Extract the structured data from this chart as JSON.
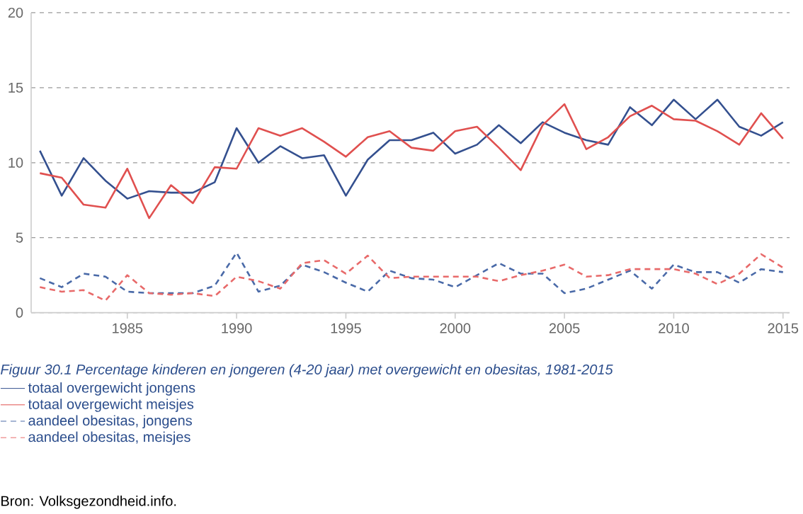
{
  "chart_data": {
    "type": "line",
    "title": "Figuur 30.1 Percentage kinderen en jongeren (4-20 jaar) met overgewicht en obesitas, 1981-2015",
    "annotations": [
      "Bron: Volksgezondheid.info."
    ],
    "x": [
      1981,
      1982,
      1983,
      1984,
      1985,
      1986,
      1987,
      1988,
      1989,
      1990,
      1991,
      1992,
      1993,
      1994,
      1995,
      1996,
      1997,
      1998,
      1999,
      2000,
      2001,
      2002,
      2003,
      2004,
      2005,
      2006,
      2007,
      2008,
      2009,
      2010,
      2011,
      2012,
      2013,
      2014,
      2015
    ],
    "xlim": [
      1980.6,
      2015.3
    ],
    "ylim": [
      0,
      20
    ],
    "xticks": [
      1985,
      1990,
      1995,
      2000,
      2005,
      2010,
      2015
    ],
    "yticks": [
      0,
      5,
      10,
      15,
      20
    ],
    "grid": "y",
    "legend": "bottom",
    "series": [
      {
        "name": "totaal overgewicht jongens",
        "color": "#34508f",
        "line_style": "solid",
        "values": [
          10.8,
          7.8,
          10.3,
          8.8,
          7.6,
          8.1,
          8.0,
          8.0,
          8.7,
          12.3,
          10.0,
          11.1,
          10.3,
          10.5,
          7.8,
          10.2,
          11.5,
          11.5,
          12.0,
          10.6,
          11.2,
          12.5,
          11.3,
          12.7,
          12.0,
          11.5,
          11.2,
          13.7,
          12.5,
          14.2,
          12.9,
          14.2,
          12.4,
          11.8,
          12.7
        ]
      },
      {
        "name": "totaal overgewicht meisjes",
        "color": "#e0504f",
        "line_style": "solid",
        "values": [
          9.3,
          9.0,
          7.2,
          7.0,
          9.6,
          6.3,
          8.5,
          7.3,
          9.7,
          9.6,
          12.3,
          11.8,
          12.3,
          11.4,
          10.4,
          11.7,
          12.1,
          11.0,
          10.8,
          12.1,
          12.4,
          11.0,
          9.5,
          12.5,
          13.9,
          10.9,
          11.7,
          13.1,
          13.8,
          12.9,
          12.8,
          12.1,
          11.2,
          13.3,
          11.6
        ]
      },
      {
        "name": "aandeel obesitas, jongens",
        "color": "#4a6aa8",
        "line_style": "dashed",
        "values": [
          2.3,
          1.7,
          2.6,
          2.4,
          1.4,
          1.3,
          1.3,
          1.3,
          1.8,
          4.0,
          1.4,
          1.8,
          3.2,
          2.7,
          2.0,
          1.4,
          2.8,
          2.3,
          2.2,
          1.7,
          2.5,
          3.3,
          2.6,
          2.6,
          1.3,
          1.6,
          2.2,
          2.8,
          1.6,
          3.2,
          2.7,
          2.7,
          2.0,
          2.9,
          2.7
        ]
      },
      {
        "name": "aandeel obesitas, meisjes",
        "color": "#e86a6a",
        "line_style": "dashed",
        "values": [
          1.7,
          1.4,
          1.5,
          0.8,
          2.5,
          1.3,
          1.2,
          1.3,
          1.1,
          2.4,
          2.1,
          1.6,
          3.3,
          3.5,
          2.6,
          3.8,
          2.3,
          2.4,
          2.4,
          2.4,
          2.4,
          2.1,
          2.5,
          2.8,
          3.2,
          2.4,
          2.5,
          2.9,
          2.9,
          2.9,
          2.6,
          1.9,
          2.6,
          3.9,
          3.0
        ]
      }
    ]
  }
}
